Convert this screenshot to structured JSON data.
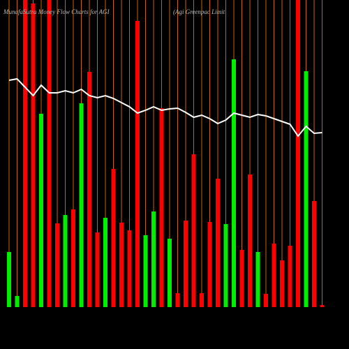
{
  "chart_data": {
    "type": "bar",
    "title": "MunafaSutra Money Flow Charts for AGI",
    "subtitle": "(Agi Greenpac Limit",
    "ylim": [
      0,
      440
    ],
    "grid_color": "#c86400",
    "line_color": "#ffffff",
    "colors": [
      "#00ee00",
      "#00ee00",
      "#ff0000",
      "#ff0000",
      "#00ee00",
      "#ff0000",
      "#ff0000",
      "#00ee00",
      "#ff0000",
      "#00ee00",
      "#ff0000",
      "#ff0000",
      "#00ee00",
      "#ff0000",
      "#ff0000",
      "#ff0000",
      "#ff0000",
      "#00ee00",
      "#00ee00",
      "#ff0000",
      "#00ee00",
      "#ff0000",
      "#ff0000",
      "#ff0000",
      "#ff0000",
      "#ff0000",
      "#ff0000",
      "#00ee00",
      "#00ee00",
      "#ff0000",
      "#ff0000",
      "#00ee00",
      "#ff0000",
      "#ff0000",
      "#ff0000",
      "#ff0000",
      "#ff0000",
      "#00ee00",
      "#ff0000",
      "#ff0000"
    ],
    "values": [
      79,
      16,
      440,
      435,
      277,
      440,
      120,
      132,
      140,
      292,
      337,
      107,
      128,
      198,
      121,
      110,
      410,
      103,
      137,
      285,
      98,
      20,
      124,
      219,
      20,
      122,
      184,
      119,
      355,
      82,
      190,
      79,
      19,
      91,
      67,
      88,
      440,
      338,
      152,
      3
    ],
    "line_values": [
      325,
      327,
      315,
      303,
      318,
      307,
      307,
      310,
      307,
      312,
      303,
      300,
      303,
      299,
      293,
      287,
      278,
      282,
      287,
      282,
      284,
      285,
      279,
      272,
      275,
      270,
      263,
      268,
      278,
      275,
      272,
      276,
      274,
      270,
      266,
      262,
      245,
      259,
      249,
      250
    ]
  }
}
